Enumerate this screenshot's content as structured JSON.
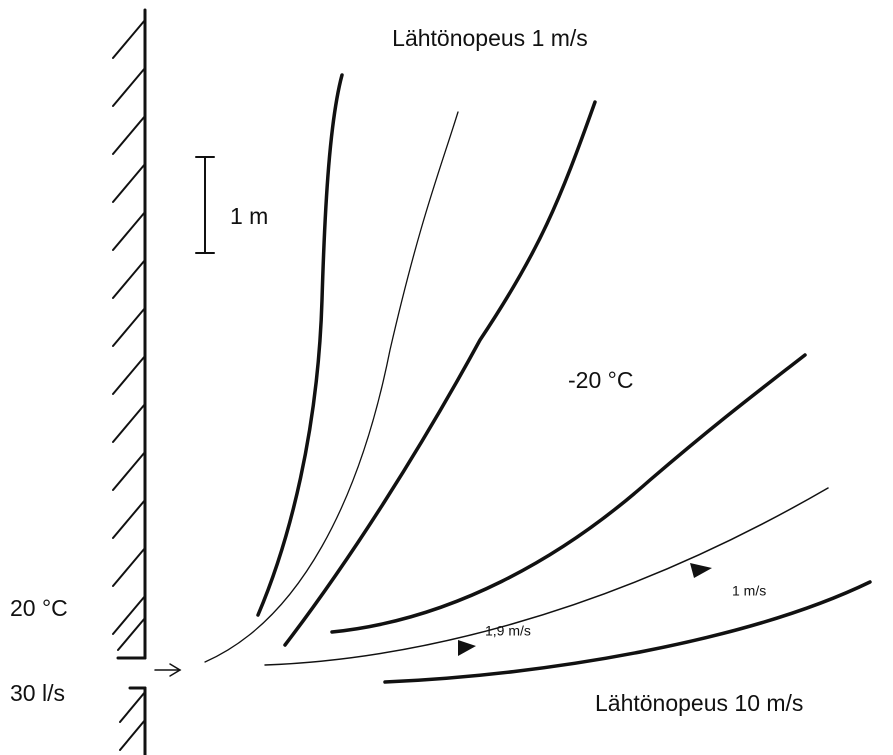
{
  "title_top": "Lähtönopeus 1 m/s",
  "scale_label": "1 m",
  "room_temperature": "-20 °C",
  "supply_temperature": "20 °C",
  "supply_flow": "30 l/s",
  "speed_near": "1,9 m/s",
  "speed_far": "1 m/s",
  "title_bottom": "Lähtönopeus 10 m/s"
}
